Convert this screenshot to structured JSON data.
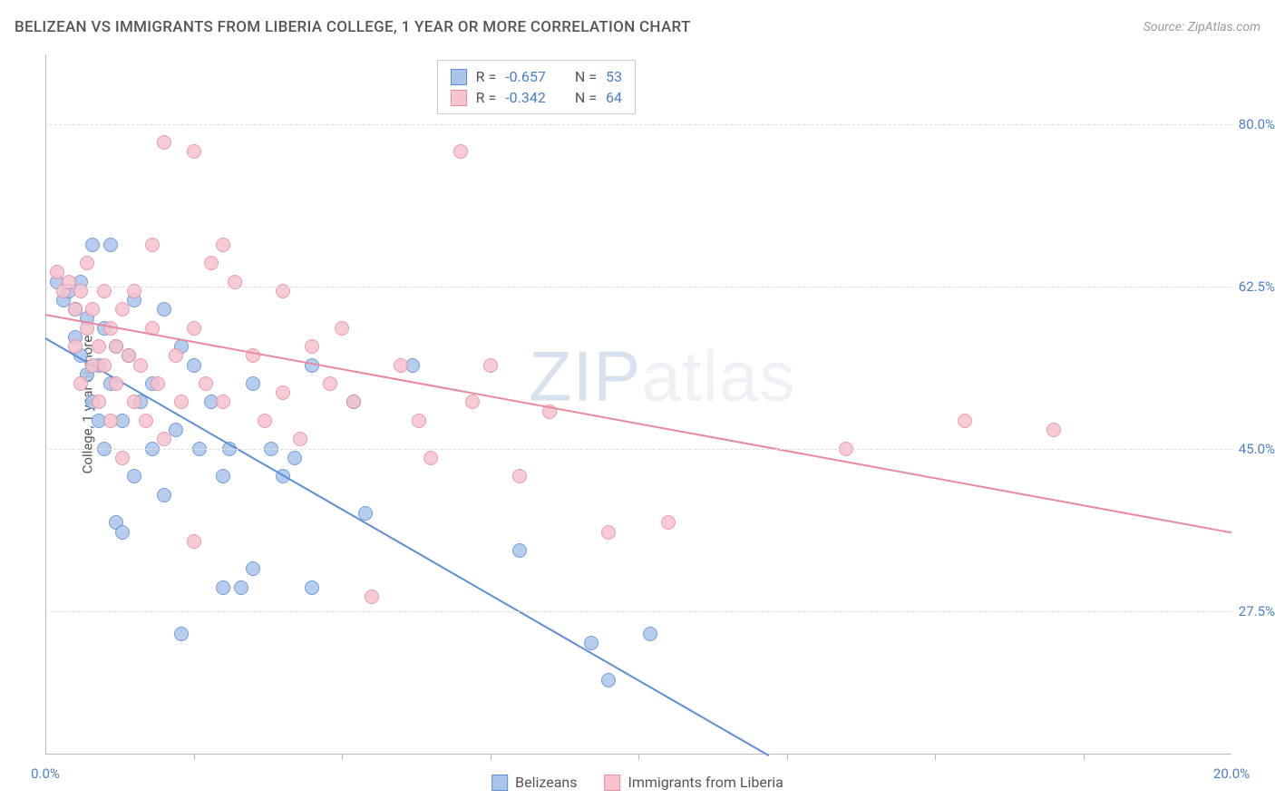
{
  "header": {
    "title": "BELIZEAN VS IMMIGRANTS FROM LIBERIA COLLEGE, 1 YEAR OR MORE CORRELATION CHART",
    "source": "Source: ZipAtlas.com"
  },
  "chart": {
    "type": "scatter",
    "y_label": "College, 1 year or more",
    "background_color": "#ffffff",
    "grid_color": "#dddddd",
    "axis_color": "#bbbbbb",
    "text_color": "#555555",
    "tick_color": "#4a7ec9",
    "xlim": [
      0,
      20
    ],
    "ylim": [
      12,
      87.5
    ],
    "x_ticks": [
      {
        "v": 0,
        "label": "0.0%"
      },
      {
        "v": 20,
        "label": "20.0%"
      }
    ],
    "x_minor_ticks": [
      2.5,
      5,
      7.5,
      10,
      12.5,
      15,
      17.5
    ],
    "y_ticks": [
      {
        "v": 27.5,
        "label": "27.5%"
      },
      {
        "v": 45.0,
        "label": "45.0%"
      },
      {
        "v": 62.5,
        "label": "62.5%"
      },
      {
        "v": 80.0,
        "label": "80.0%"
      }
    ],
    "marker_radius": 8,
    "marker_border_width": 1.5,
    "marker_fill_opacity": 0.35,
    "line_width": 2,
    "series": [
      {
        "id": "belizeans",
        "name": "Belizeans",
        "color_stroke": "#5b8ed6",
        "color_fill": "#aac5ea",
        "R": "-0.657",
        "N": "53",
        "regression": {
          "x1": 0,
          "y1": 57,
          "x2": 12.2,
          "y2": 12
        },
        "points": [
          [
            0.2,
            63
          ],
          [
            0.3,
            61
          ],
          [
            0.4,
            62
          ],
          [
            0.5,
            60
          ],
          [
            0.5,
            57
          ],
          [
            0.6,
            63
          ],
          [
            0.6,
            55
          ],
          [
            0.7,
            59
          ],
          [
            0.7,
            53
          ],
          [
            0.8,
            67
          ],
          [
            0.8,
            50
          ],
          [
            0.9,
            54
          ],
          [
            0.9,
            48
          ],
          [
            1.0,
            58
          ],
          [
            1.0,
            45
          ],
          [
            1.1,
            52
          ],
          [
            1.1,
            67
          ],
          [
            1.2,
            37
          ],
          [
            1.2,
            56
          ],
          [
            1.3,
            48
          ],
          [
            1.3,
            36
          ],
          [
            1.4,
            55
          ],
          [
            1.5,
            61
          ],
          [
            1.5,
            42
          ],
          [
            1.6,
            50
          ],
          [
            1.8,
            52
          ],
          [
            1.8,
            45
          ],
          [
            2.0,
            60
          ],
          [
            2.0,
            40
          ],
          [
            2.2,
            47
          ],
          [
            2.3,
            56
          ],
          [
            2.3,
            25
          ],
          [
            2.5,
            54
          ],
          [
            2.6,
            45
          ],
          [
            2.8,
            50
          ],
          [
            3.0,
            42
          ],
          [
            3.0,
            30
          ],
          [
            3.1,
            45
          ],
          [
            3.3,
            30
          ],
          [
            3.5,
            52
          ],
          [
            3.5,
            32
          ],
          [
            3.8,
            45
          ],
          [
            4.0,
            42
          ],
          [
            4.2,
            44
          ],
          [
            4.5,
            30
          ],
          [
            4.5,
            54
          ],
          [
            5.2,
            50
          ],
          [
            5.4,
            38
          ],
          [
            6.2,
            54
          ],
          [
            8.0,
            34
          ],
          [
            9.2,
            24
          ],
          [
            9.5,
            20
          ],
          [
            10.2,
            25
          ]
        ]
      },
      {
        "id": "liberia",
        "name": "Immigrants from Liberia",
        "color_stroke": "#e9899e",
        "color_fill": "#f6c3cf",
        "R": "-0.342",
        "N": "64",
        "regression": {
          "x1": 0,
          "y1": 59.5,
          "x2": 20,
          "y2": 36
        },
        "points": [
          [
            0.2,
            64
          ],
          [
            0.3,
            62
          ],
          [
            0.4,
            63
          ],
          [
            0.5,
            60
          ],
          [
            0.5,
            56
          ],
          [
            0.6,
            62
          ],
          [
            0.6,
            52
          ],
          [
            0.7,
            58
          ],
          [
            0.7,
            65
          ],
          [
            0.8,
            54
          ],
          [
            0.8,
            60
          ],
          [
            0.9,
            56
          ],
          [
            0.9,
            50
          ],
          [
            1.0,
            62
          ],
          [
            1.0,
            54
          ],
          [
            1.1,
            58
          ],
          [
            1.1,
            48
          ],
          [
            1.2,
            56
          ],
          [
            1.2,
            52
          ],
          [
            1.3,
            60
          ],
          [
            1.3,
            44
          ],
          [
            1.4,
            55
          ],
          [
            1.5,
            62
          ],
          [
            1.5,
            50
          ],
          [
            1.6,
            54
          ],
          [
            1.7,
            48
          ],
          [
            1.8,
            58
          ],
          [
            1.8,
            67
          ],
          [
            1.9,
            52
          ],
          [
            2.0,
            46
          ],
          [
            2.0,
            78
          ],
          [
            2.2,
            55
          ],
          [
            2.3,
            50
          ],
          [
            2.5,
            77
          ],
          [
            2.5,
            58
          ],
          [
            2.5,
            35
          ],
          [
            2.7,
            52
          ],
          [
            2.8,
            65
          ],
          [
            3.0,
            67
          ],
          [
            3.0,
            50
          ],
          [
            3.2,
            63
          ],
          [
            3.5,
            55
          ],
          [
            3.7,
            48
          ],
          [
            4.0,
            62
          ],
          [
            4.0,
            51
          ],
          [
            4.3,
            46
          ],
          [
            4.5,
            56
          ],
          [
            4.8,
            52
          ],
          [
            5.0,
            58
          ],
          [
            5.2,
            50
          ],
          [
            5.5,
            29
          ],
          [
            6.0,
            54
          ],
          [
            6.3,
            48
          ],
          [
            6.5,
            44
          ],
          [
            7.0,
            77
          ],
          [
            7.2,
            50
          ],
          [
            7.5,
            54
          ],
          [
            8.0,
            42
          ],
          [
            8.5,
            49
          ],
          [
            9.5,
            36
          ],
          [
            10.5,
            37
          ],
          [
            13.5,
            45
          ],
          [
            15.5,
            48
          ],
          [
            17.0,
            47
          ]
        ]
      }
    ],
    "stats_labels": {
      "R": "R =",
      "N": "N ="
    },
    "watermark": {
      "a": "ZIP",
      "b": "atlas"
    }
  }
}
